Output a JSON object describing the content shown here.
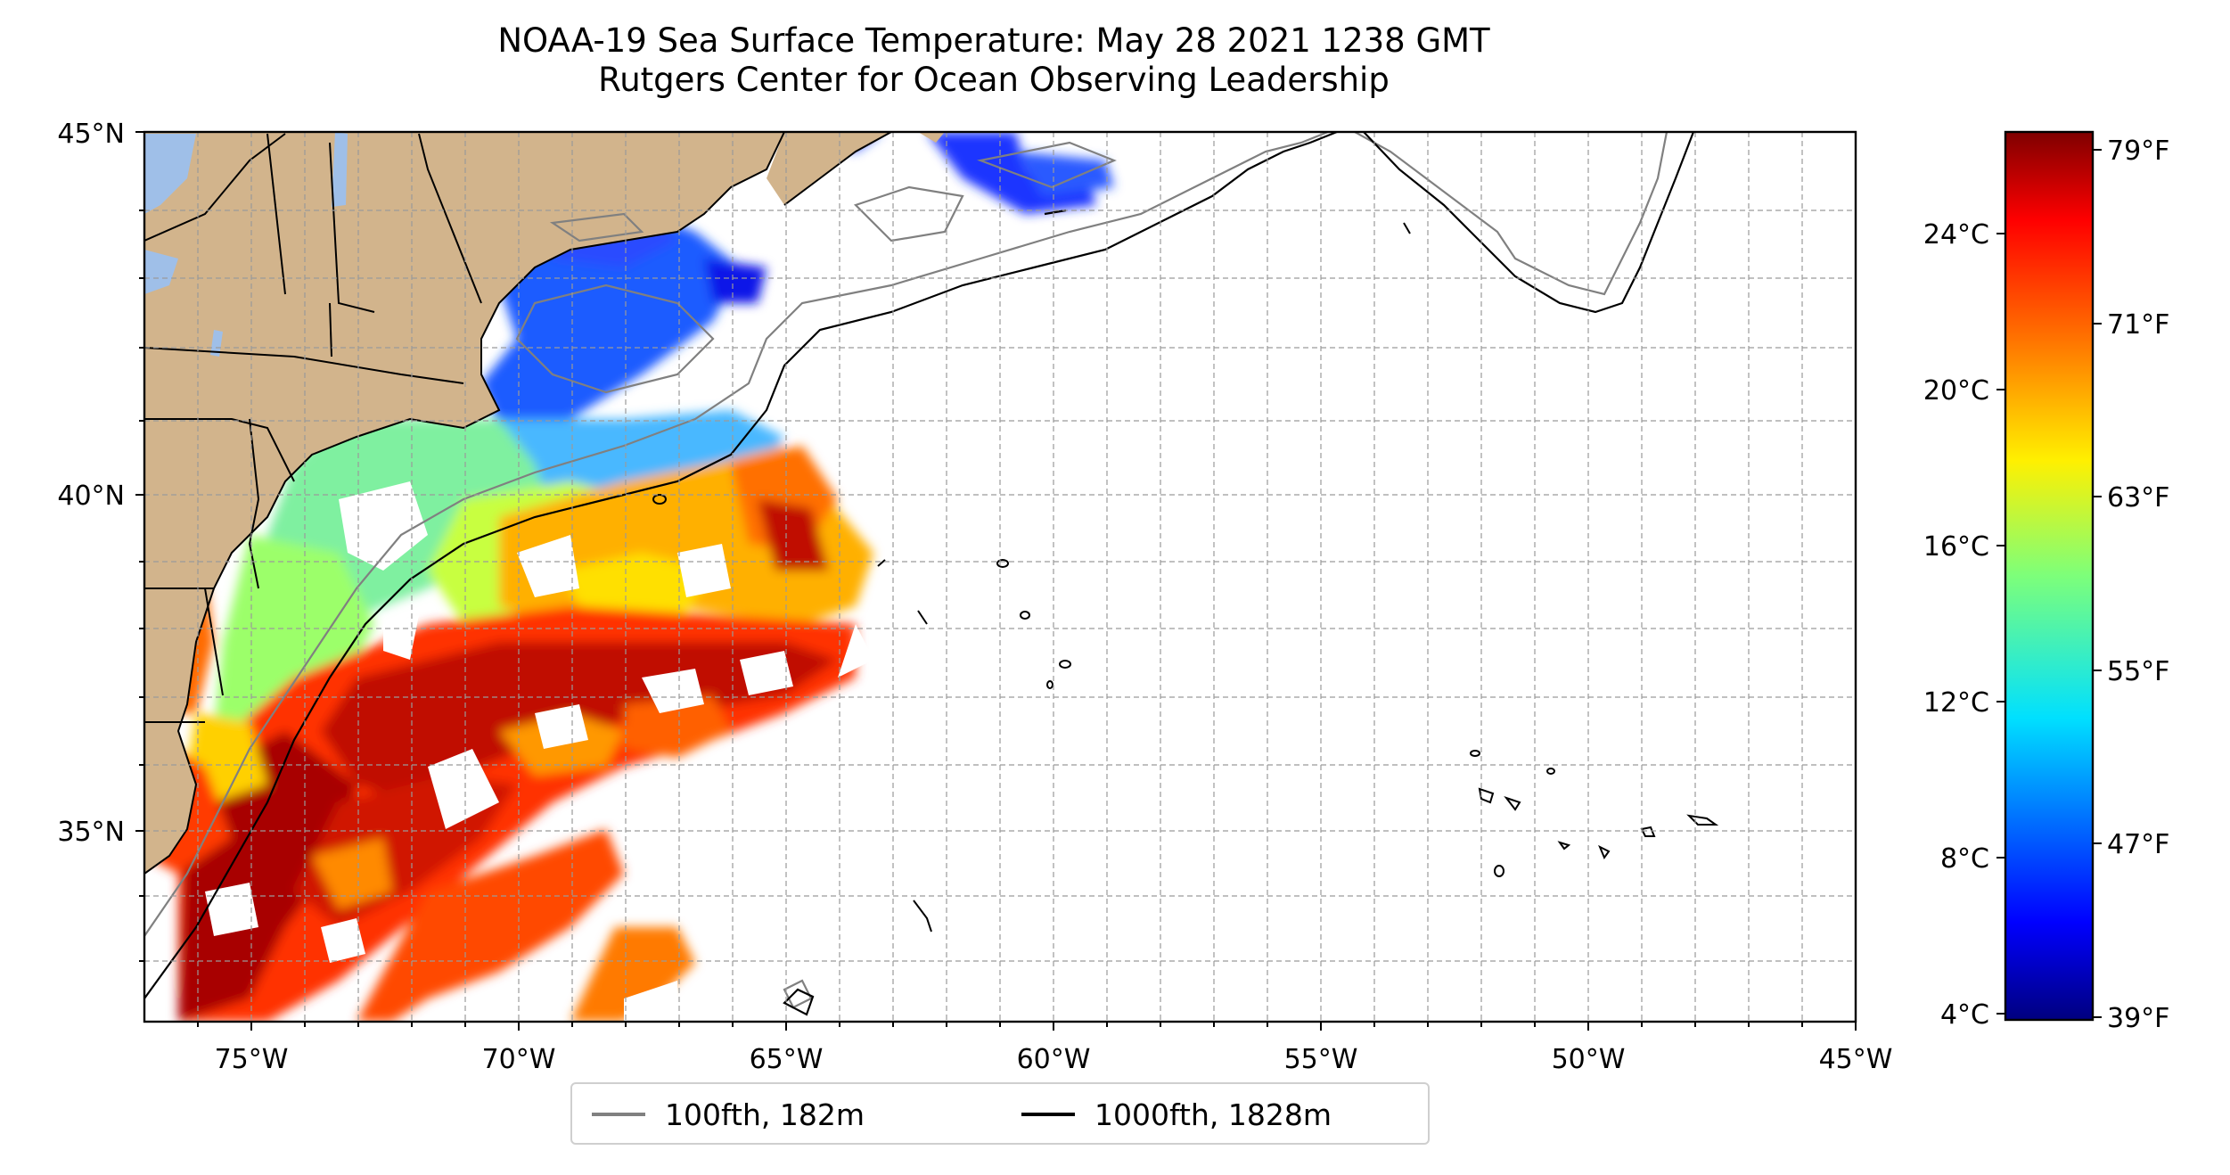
{
  "title": {
    "line1": "NOAA-19 Sea Surface Temperature: May 28 2021 1238 GMT",
    "line2": "Rutgers Center for Ocean Observing Leadership"
  },
  "map": {
    "lat_labels": [
      "45°N",
      "40°N",
      "35°N"
    ],
    "lon_labels": [
      "75°W",
      "70°W",
      "65°W",
      "60°W",
      "55°W",
      "50°W",
      "45°W"
    ],
    "lon_range": [
      -77,
      -45
    ],
    "lat_range": [
      32.2,
      45
    ],
    "land_color": "#d2b48c",
    "water_color": "#9fbfe8",
    "grid": true
  },
  "legend": {
    "items": [
      {
        "label": "100fth, 182m",
        "color": "#808080"
      },
      {
        "label": "1000fth, 1828m",
        "color": "#000000"
      }
    ],
    "placement": "bottom-center"
  },
  "colorbar": {
    "colormap": "jet",
    "celsius_labels": [
      "24°C",
      "20°C",
      "16°C",
      "12°C",
      "8°C",
      "4°C"
    ],
    "fahrenheit_labels": [
      "79°F",
      "71°F",
      "63°F",
      "55°F",
      "47°F",
      "39°F"
    ],
    "range_f": [
      39,
      80
    ]
  }
}
